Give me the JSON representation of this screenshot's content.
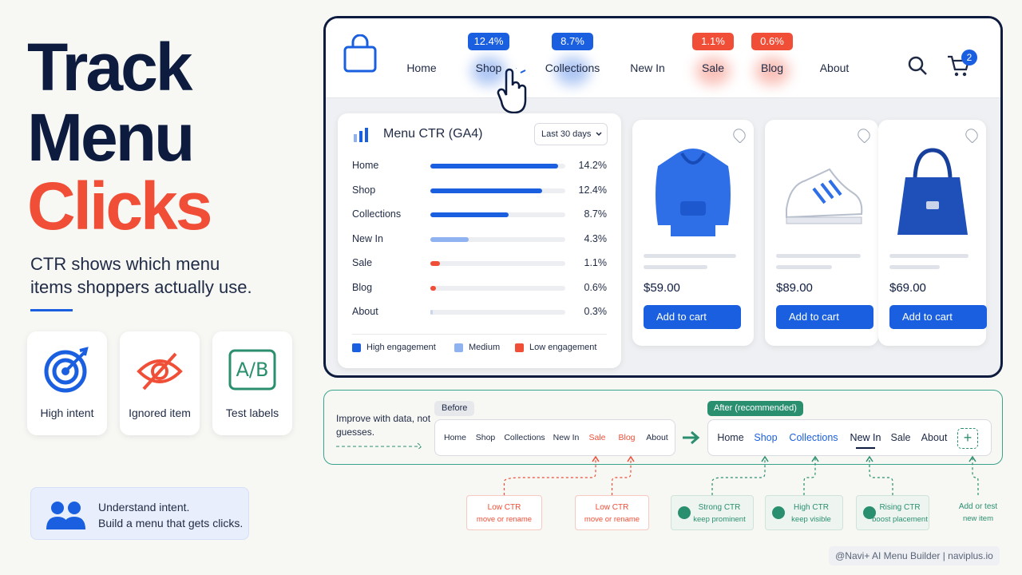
{
  "hero": {
    "title_line1": "Track",
    "title_line2": "Menu",
    "title_line3": "Clicks",
    "subtitle": "CTR shows which menu items shoppers actually use."
  },
  "features": [
    "High intent",
    "Ignored item",
    "Test labels"
  ],
  "callout": {
    "line1": "Understand intent.",
    "line2": "Build a menu that gets clicks."
  },
  "nav": {
    "items": [
      {
        "label": "Home"
      },
      {
        "label": "Shop",
        "badge": "12.4%",
        "color": "#1a5fe0"
      },
      {
        "label": "Collections",
        "badge": "8.7%",
        "color": "#1a5fe0"
      },
      {
        "label": "New In"
      },
      {
        "label": "Sale",
        "badge": "1.1%",
        "color": "#f04e37"
      },
      {
        "label": "Blog",
        "badge": "0.6%",
        "color": "#f04e37"
      },
      {
        "label": "About"
      }
    ],
    "cart_count": 2
  },
  "ctr_panel": {
    "title": "Menu CTR (GA4)",
    "range": "Last 30 days",
    "items": [
      "Home",
      "Shop",
      "Collections",
      "New In",
      "Sale",
      "Blog",
      "About"
    ],
    "values": [
      14.2,
      12.4,
      8.7,
      4.3,
      1.1,
      0.6,
      0.3
    ],
    "value_labels": [
      "14.2%",
      "12.4%",
      "8.7%",
      "4.3%",
      "1.1%",
      "0.6%",
      "0.3%"
    ],
    "colors": [
      "#1a5fe0",
      "#1a5fe0",
      "#1a5fe0",
      "#8fb3f0",
      "#f04e37",
      "#f04e37",
      "#c9d6ee"
    ],
    "legend": [
      {
        "name": "High engagement",
        "color": "#1a5fe0"
      },
      {
        "name": "Medium",
        "color": "#8fb3f0"
      },
      {
        "name": "Low engagement",
        "color": "#f04e37"
      }
    ]
  },
  "products": [
    {
      "price": "$59.00",
      "button": "Add to cart"
    },
    {
      "price": "$89.00",
      "button": "Add to cart"
    },
    {
      "price": "$69.00",
      "button": "Add to cart"
    }
  ],
  "comparison": {
    "intro": "Improve with data, not guesses.",
    "before": {
      "tag": "Before",
      "items": [
        {
          "label": "Home",
          "color": "#1f2a44"
        },
        {
          "label": "Shop",
          "color": "#1f2a44"
        },
        {
          "label": "Collections",
          "color": "#1f2a44"
        },
        {
          "label": "New In",
          "color": "#1f2a44"
        },
        {
          "label": "Sale",
          "color": "#f04e37"
        },
        {
          "label": "Blog",
          "color": "#f04e37"
        },
        {
          "label": "About",
          "color": "#1f2a44"
        }
      ]
    },
    "after": {
      "tag": "After (recommended)",
      "items": [
        {
          "label": "Home",
          "color": "#1f2a44"
        },
        {
          "label": "Shop",
          "color": "#1a5fe0"
        },
        {
          "label": "Collections",
          "color": "#1a5fe0"
        },
        {
          "label": "New In",
          "color": "#0d1b3e"
        },
        {
          "label": "Sale",
          "color": "#1f2a44"
        },
        {
          "label": "About",
          "color": "#1f2a44"
        }
      ]
    },
    "notes": [
      {
        "line1": "Low CTR",
        "line2": "move or rename",
        "color": "#f04e37"
      },
      {
        "line1": "Low CTR",
        "line2": "move or rename",
        "color": "#f04e37"
      },
      {
        "line1": "Strong CTR",
        "line2": "keep prominent",
        "color": "#2a8f6f"
      },
      {
        "line1": "High CTR",
        "line2": "keep visible",
        "color": "#2a8f6f"
      },
      {
        "line1": "Rising CTR",
        "line2": "boost placement",
        "color": "#2a8f6f"
      },
      {
        "line1": "Add or test",
        "line2": "new item",
        "color": "#2a8f6f"
      }
    ]
  },
  "footer": "@Navi+ AI Menu Builder | naviplus.io"
}
